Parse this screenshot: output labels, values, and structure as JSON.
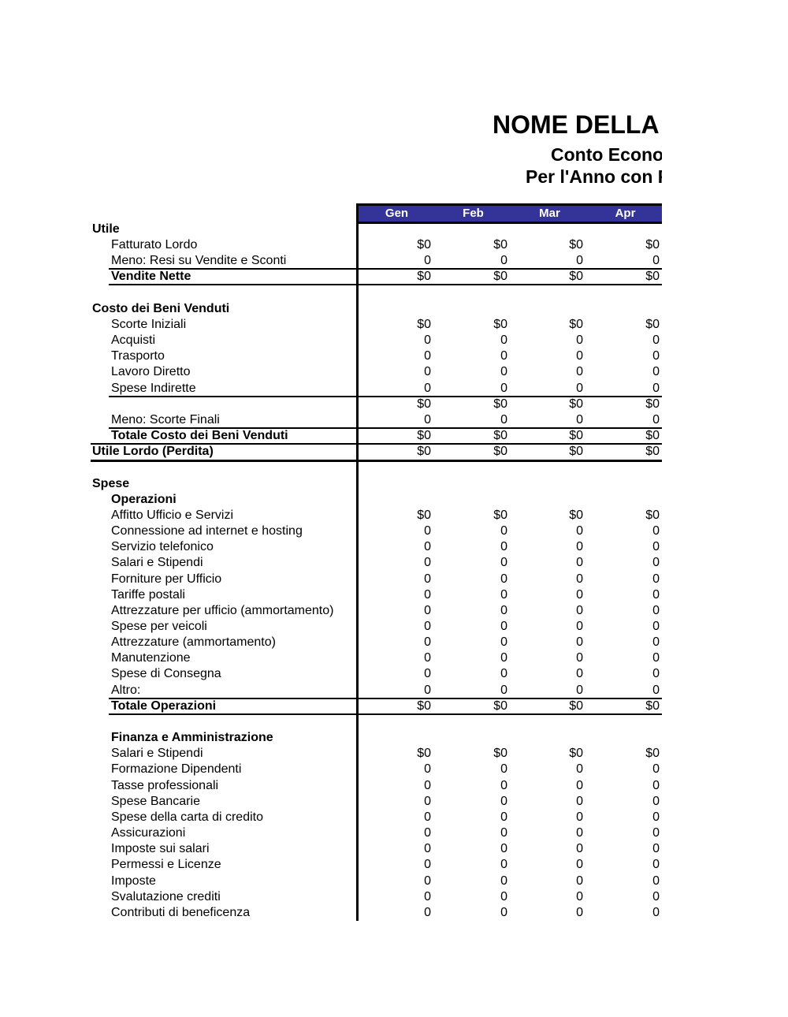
{
  "title": {
    "line1": "NOME DELLA",
    "line2": "Conto Econo",
    "line3": "Per l'Anno con F"
  },
  "months": [
    "Gen",
    "Feb",
    "Mar",
    "Apr"
  ],
  "header_color": "#333399",
  "rows": [
    {
      "label": "Utile",
      "level": 0,
      "bold": true,
      "values": []
    },
    {
      "label": "Fatturato Lordo",
      "level": 1,
      "values": [
        "$0",
        "$0",
        "$0",
        "$0"
      ]
    },
    {
      "label": "Meno: Resi su Vendite e Sconti",
      "level": 1,
      "values": [
        "0",
        "0",
        "0",
        "0"
      ],
      "line": "sub"
    },
    {
      "label": "Vendite Nette",
      "level": 1,
      "bold": true,
      "values": [
        "$0",
        "$0",
        "$0",
        "$0"
      ],
      "line": "sub"
    },
    {
      "label": "",
      "level": 0,
      "values": []
    },
    {
      "label": "Costo dei Beni Venduti",
      "level": 0,
      "bold": true,
      "values": []
    },
    {
      "label": "Scorte Iniziali",
      "level": 1,
      "values": [
        "$0",
        "$0",
        "$0",
        "$0"
      ]
    },
    {
      "label": "Acquisti",
      "level": 1,
      "values": [
        "0",
        "0",
        "0",
        "0"
      ]
    },
    {
      "label": "Trasporto",
      "level": 1,
      "values": [
        "0",
        "0",
        "0",
        "0"
      ]
    },
    {
      "label": "Lavoro Diretto",
      "level": 1,
      "values": [
        "0",
        "0",
        "0",
        "0"
      ]
    },
    {
      "label": "Spese Indirette",
      "level": 1,
      "values": [
        "0",
        "0",
        "0",
        "0"
      ],
      "line": "sub"
    },
    {
      "label": "",
      "level": 1,
      "values": [
        "$0",
        "$0",
        "$0",
        "$0"
      ]
    },
    {
      "label": "Meno: Scorte Finali",
      "level": 1,
      "values": [
        "0",
        "0",
        "0",
        "0"
      ],
      "line": "sub"
    },
    {
      "label": "Totale Costo dei Beni Venduti",
      "level": 1,
      "bold": true,
      "values": [
        "$0",
        "$0",
        "$0",
        "$0"
      ],
      "line": "full"
    },
    {
      "label": "Utile Lordo (Perdita)",
      "level": 0,
      "bold": true,
      "values": [
        "$0",
        "$0",
        "$0",
        "$0"
      ],
      "line": "thick"
    },
    {
      "label": "",
      "level": 0,
      "values": []
    },
    {
      "label": "Spese",
      "level": 0,
      "bold": true,
      "values": []
    },
    {
      "label": "Operazioni",
      "level": 1,
      "bold": true,
      "values": []
    },
    {
      "label": "Affitto Ufficio e Servizi",
      "level": 1,
      "values": [
        "$0",
        "$0",
        "$0",
        "$0"
      ]
    },
    {
      "label": "Connessione ad internet e hosting",
      "level": 1,
      "values": [
        "0",
        "0",
        "0",
        "0"
      ]
    },
    {
      "label": "Servizio telefonico",
      "level": 1,
      "values": [
        "0",
        "0",
        "0",
        "0"
      ]
    },
    {
      "label": "Salari e Stipendi",
      "level": 1,
      "values": [
        "0",
        "0",
        "0",
        "0"
      ]
    },
    {
      "label": "Forniture per Ufficio",
      "level": 1,
      "values": [
        "0",
        "0",
        "0",
        "0"
      ]
    },
    {
      "label": "Tariffe postali",
      "level": 1,
      "values": [
        "0",
        "0",
        "0",
        "0"
      ]
    },
    {
      "label": "Attrezzature per ufficio (ammortamento)",
      "level": 1,
      "values": [
        "0",
        "0",
        "0",
        "0"
      ]
    },
    {
      "label": "Spese per veicoli",
      "level": 1,
      "values": [
        "0",
        "0",
        "0",
        "0"
      ]
    },
    {
      "label": "Attrezzature (ammortamento)",
      "level": 1,
      "values": [
        "0",
        "0",
        "0",
        "0"
      ]
    },
    {
      "label": "Manutenzione",
      "level": 1,
      "values": [
        "0",
        "0",
        "0",
        "0"
      ]
    },
    {
      "label": "Spese di Consegna",
      "level": 1,
      "values": [
        "0",
        "0",
        "0",
        "0"
      ]
    },
    {
      "label": "Altro:",
      "level": 1,
      "values": [
        "0",
        "0",
        "0",
        "0"
      ],
      "line": "sub"
    },
    {
      "label": "Totale Operazioni",
      "level": 1,
      "bold": true,
      "values": [
        "$0",
        "$0",
        "$0",
        "$0"
      ],
      "line": "sub"
    },
    {
      "label": "",
      "level": 0,
      "values": []
    },
    {
      "label": "Finanza e Amministrazione",
      "level": 1,
      "bold": true,
      "values": []
    },
    {
      "label": "Salari e Stipendi",
      "level": 1,
      "values": [
        "$0",
        "$0",
        "$0",
        "$0"
      ]
    },
    {
      "label": "Formazione Dipendenti",
      "level": 1,
      "values": [
        "0",
        "0",
        "0",
        "0"
      ]
    },
    {
      "label": "Tasse professionali",
      "level": 1,
      "values": [
        "0",
        "0",
        "0",
        "0"
      ]
    },
    {
      "label": "Spese Bancarie",
      "level": 1,
      "values": [
        "0",
        "0",
        "0",
        "0"
      ]
    },
    {
      "label": "Spese della carta di credito",
      "level": 1,
      "values": [
        "0",
        "0",
        "0",
        "0"
      ]
    },
    {
      "label": "Assicurazioni",
      "level": 1,
      "values": [
        "0",
        "0",
        "0",
        "0"
      ]
    },
    {
      "label": "Imposte sui salari",
      "level": 1,
      "values": [
        "0",
        "0",
        "0",
        "0"
      ]
    },
    {
      "label": "Permessi e Licenze",
      "level": 1,
      "values": [
        "0",
        "0",
        "0",
        "0"
      ]
    },
    {
      "label": "Imposte",
      "level": 1,
      "values": [
        "0",
        "0",
        "0",
        "0"
      ]
    },
    {
      "label": "Svalutazione crediti",
      "level": 1,
      "values": [
        "0",
        "0",
        "0",
        "0"
      ]
    },
    {
      "label": "Contributi di beneficenza",
      "level": 1,
      "values": [
        "0",
        "0",
        "0",
        "0"
      ]
    }
  ]
}
